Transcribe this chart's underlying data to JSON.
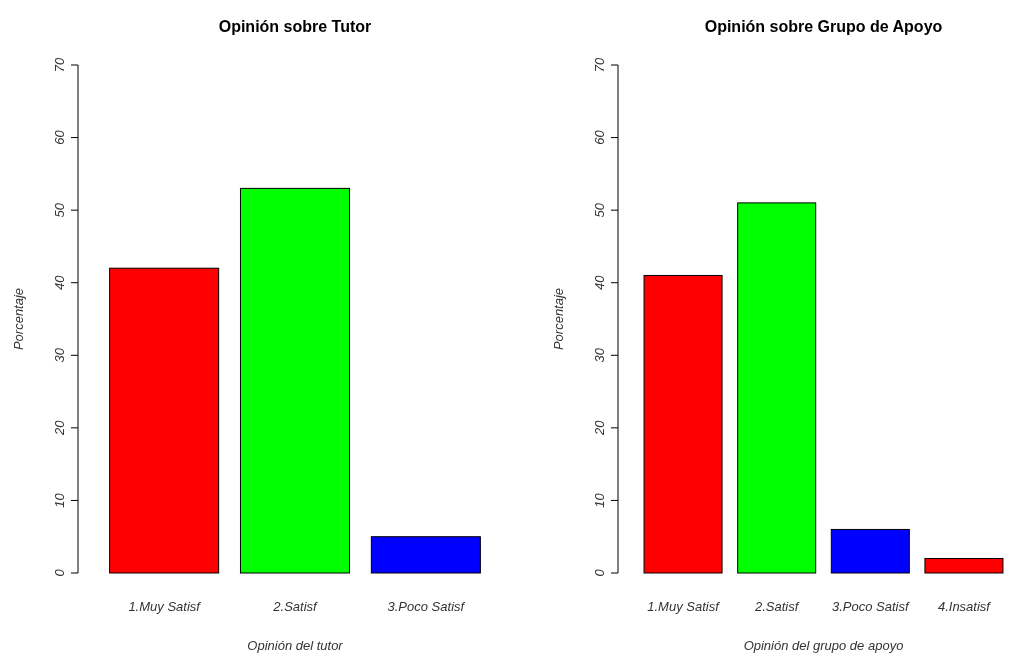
{
  "chart_data": [
    {
      "type": "bar",
      "title": "Opinión sobre Tutor",
      "xlabel": "Opinión del tutor",
      "ylabel": "Porcentaje",
      "categories": [
        "1.Muy Satisf",
        "2.Satisf",
        "3.Poco Satisf"
      ],
      "values": [
        42,
        53,
        5
      ],
      "colors": [
        "#ff0000",
        "#00ff00",
        "#0000ff"
      ],
      "ylim": [
        0,
        70
      ],
      "yticks": [
        0,
        10,
        20,
        30,
        40,
        50,
        60,
        70
      ]
    },
    {
      "type": "bar",
      "title": "Opinión sobre Grupo de Apoyo",
      "xlabel": "Opinión del grupo de apoyo",
      "ylabel": "Porcentaje",
      "categories": [
        "1.Muy Satisf",
        "2.Satisf",
        "3.Poco Satisf",
        "4.Insatisf"
      ],
      "values": [
        41,
        51,
        6,
        2
      ],
      "colors": [
        "#ff0000",
        "#00ff00",
        "#0000ff",
        "#ff0000"
      ],
      "ylim": [
        0,
        70
      ],
      "yticks": [
        0,
        10,
        20,
        30,
        40,
        50,
        60,
        70
      ]
    }
  ]
}
